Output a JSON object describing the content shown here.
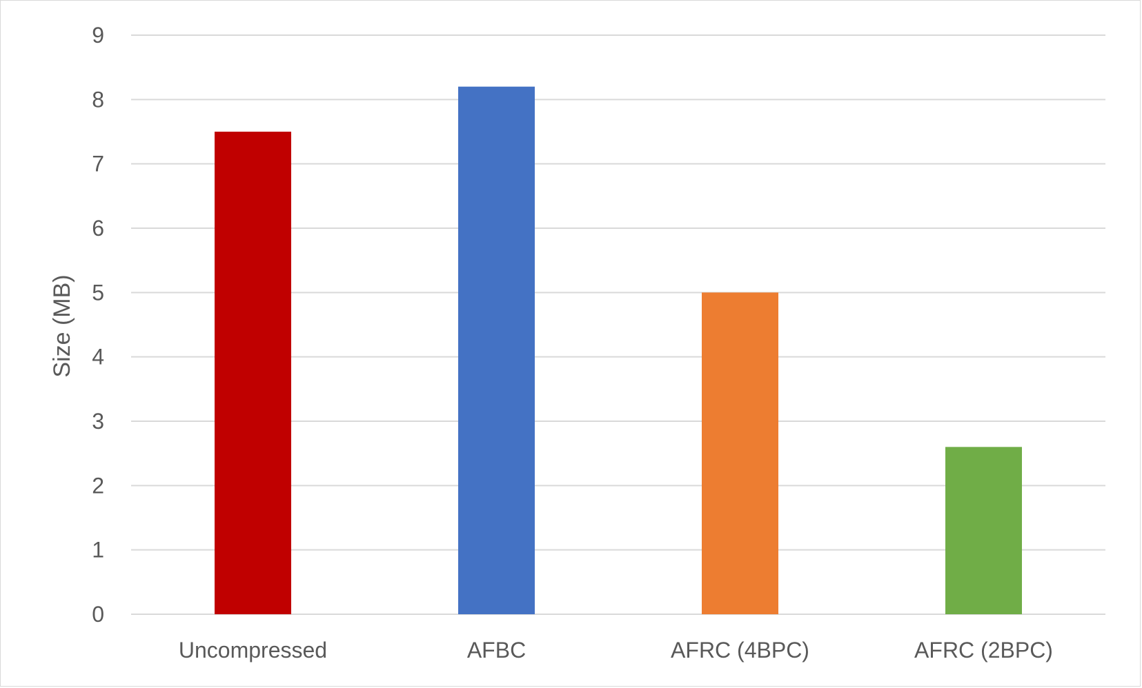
{
  "chart_data": {
    "type": "bar",
    "title": "",
    "xlabel": "",
    "ylabel": "Size (MB)",
    "categories": [
      "Uncompressed",
      "AFBC",
      "AFRC (4BPC)",
      "AFRC (2BPC)"
    ],
    "values": [
      7.5,
      8.2,
      5.0,
      2.6
    ],
    "colors": [
      "#c00000",
      "#4472c4",
      "#ed7d31",
      "#70ad47"
    ],
    "ylim": [
      0,
      9
    ],
    "yticks": [
      0,
      1,
      2,
      3,
      4,
      5,
      6,
      7,
      8,
      9
    ],
    "grid": true,
    "legend": "none"
  }
}
